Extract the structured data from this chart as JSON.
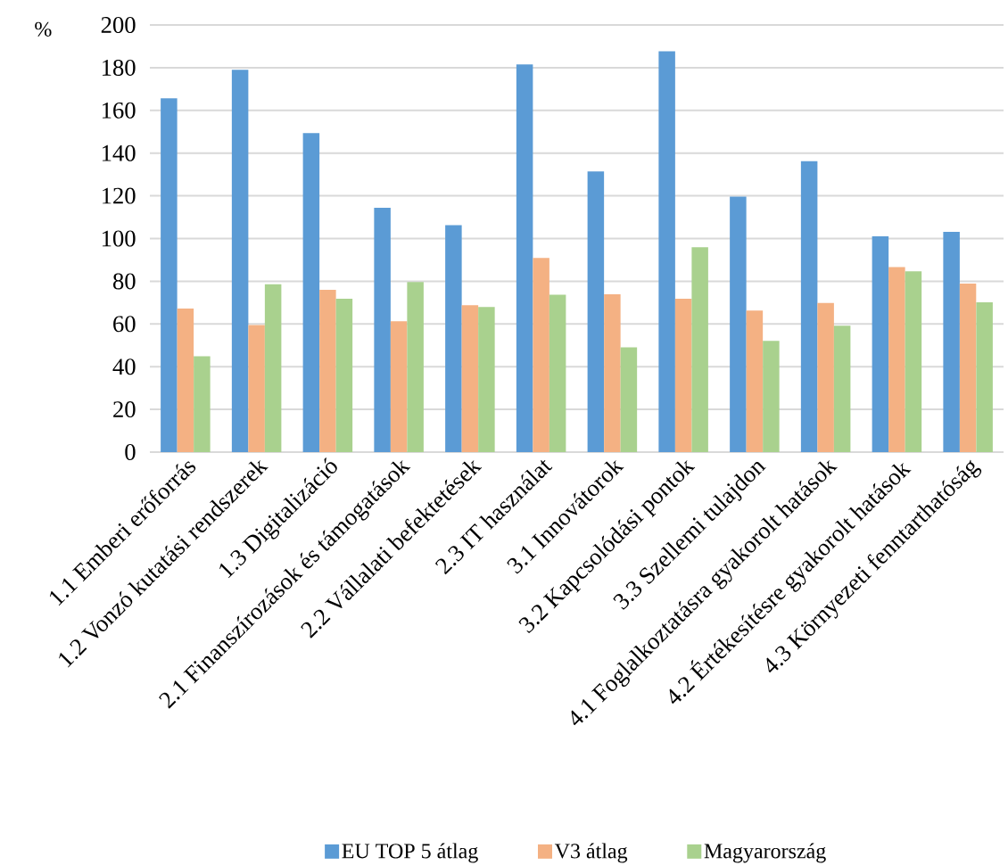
{
  "chart_data": {
    "type": "bar",
    "ylabel": "%",
    "categories": [
      "1.1 Emberi erőforrás",
      "1.2 Vonzó kutatási rendszerek",
      "1.3 Digitalizáció",
      "2.1 Finanszírozások és támogatások",
      "2.2 Vállalati befektetések",
      "2.3 IT használat",
      "3.1 Innovátorok",
      "3.2 Kapcsolódási pontok",
      "3.3 Szellemi tulajdon",
      "4.1 Foglalkoztatásra gyakorolt hatások",
      "4.2 Értékesítésre gyakorolt hatások",
      "4.3 Környezeti fenntarthatóság"
    ],
    "series": [
      {
        "name": "EU TOP 5 átlag",
        "color": "#5b9bd5",
        "values": [
          165.7,
          179.0,
          149.4,
          114.4,
          106.3,
          181.5,
          131.4,
          187.7,
          119.6,
          136.2,
          101.0,
          103.1
        ]
      },
      {
        "name": "V3 átlag",
        "color": "#f4b183",
        "values": [
          67.2,
          59.5,
          76.0,
          61.3,
          68.8,
          90.9,
          73.9,
          71.8,
          66.3,
          69.8,
          86.6,
          78.9
        ]
      },
      {
        "name": "Magyarország",
        "color": "#a9d18e",
        "values": [
          44.9,
          78.6,
          71.8,
          79.6,
          68.0,
          73.7,
          49.1,
          95.9,
          52.1,
          59.2,
          84.7,
          70.1
        ]
      }
    ],
    "ylim": [
      0,
      200
    ],
    "yticks": [
      0,
      20,
      40,
      60,
      80,
      100,
      120,
      140,
      160,
      180,
      200
    ],
    "grid": "y",
    "legend": "bottom"
  }
}
